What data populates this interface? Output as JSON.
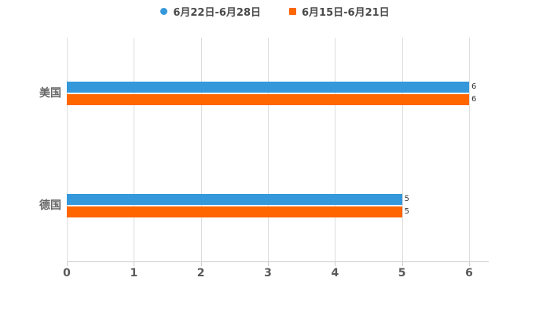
{
  "legend": {
    "items": [
      {
        "label": "6月22日-6月28日",
        "color": "#3498db",
        "shape": "circle"
      },
      {
        "label": "6月15日-6月21日",
        "color": "#ff6600",
        "shape": "square"
      }
    ]
  },
  "chart_data": {
    "type": "bar",
    "orientation": "horizontal",
    "title": "",
    "categories": [
      "美国",
      "德国"
    ],
    "series": [
      {
        "name": "6月22日-6月28日",
        "color": "#3498db",
        "values": [
          6,
          5
        ],
        "value_labels": [
          "6",
          "5"
        ]
      },
      {
        "name": "6月15日-6月21日",
        "color": "#ff6600",
        "values": [
          6,
          5
        ],
        "value_labels": [
          "6",
          "5"
        ]
      }
    ],
    "xlim": [
      0,
      6
    ],
    "x_ticks": [
      "0",
      "1",
      "2",
      "3",
      "4",
      "5",
      "6"
    ],
    "grid": true,
    "legend_position": "top"
  }
}
